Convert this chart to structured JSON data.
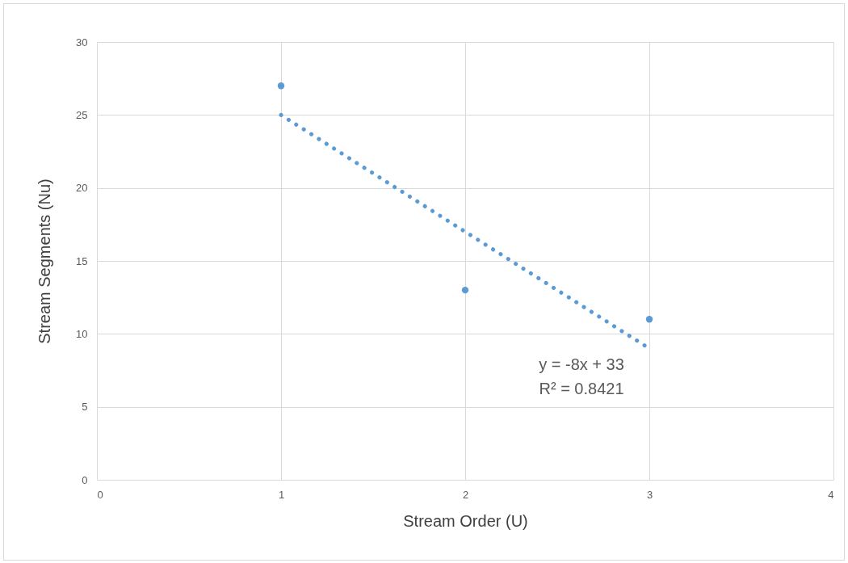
{
  "chart_data": {
    "type": "scatter",
    "xlabel": "Stream Order (U)",
    "ylabel": "Stream Segments (Nu)",
    "xlim": [
      0,
      4
    ],
    "xticks": [
      0,
      1,
      2,
      3,
      4
    ],
    "ylim": [
      0,
      30
    ],
    "yticks": [
      0,
      5,
      10,
      15,
      20,
      25,
      30
    ],
    "grid": true,
    "series": [
      {
        "color": "#5b9bd5",
        "marker": "circle",
        "x": [
          1,
          2,
          3
        ],
        "values": [
          27,
          13,
          11
        ]
      },
      {
        "type": "line",
        "color": "#5b9bd5",
        "line_style": "dotted",
        "x": [
          1,
          3
        ],
        "values": [
          25,
          9
        ]
      }
    ],
    "annotations": [
      "y = -8x + 33",
      "R² = 0.8421"
    ]
  }
}
